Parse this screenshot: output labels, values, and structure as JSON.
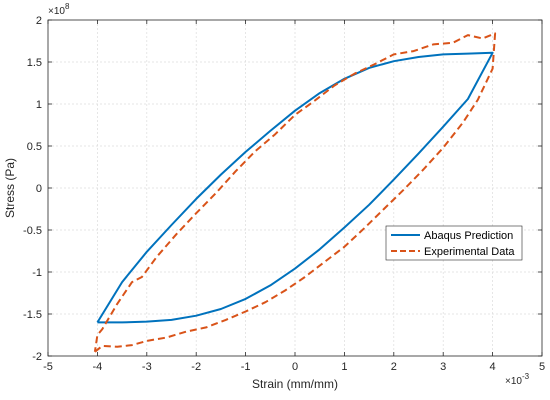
{
  "chart_data": {
    "type": "line",
    "xlabel": "Strain (mm/mm)",
    "ylabel": "Stress (Pa)",
    "x_exponent_label": "×10",
    "x_exponent": "-3",
    "y_exponent_label": "×10",
    "y_exponent": "8",
    "xlim": [
      -5,
      5
    ],
    "ylim": [
      -2,
      2
    ],
    "x_ticks": [
      -5,
      -4,
      -3,
      -2,
      -1,
      0,
      1,
      2,
      3,
      4,
      5
    ],
    "x_tick_labels": [
      "-5",
      "-4",
      "-3",
      "-2",
      "-1",
      "0",
      "1",
      "2",
      "3",
      "4",
      "5"
    ],
    "y_ticks": [
      -2,
      -1.5,
      -1,
      -0.5,
      0,
      0.5,
      1,
      1.5,
      2
    ],
    "y_tick_labels": [
      "-2",
      "-1.5",
      "-1",
      "-0.5",
      "0",
      "0.5",
      "1",
      "1.5",
      "2"
    ],
    "grid": true,
    "legend_position": "right-middle",
    "series": [
      {
        "name": "Abaqus Prediction",
        "color": "#0072bd",
        "style": "solid",
        "points": [
          [
            -4,
            -1.6
          ],
          [
            -3.5,
            -1.6
          ],
          [
            -3,
            -1.59
          ],
          [
            -2.5,
            -1.57
          ],
          [
            -2,
            -1.52
          ],
          [
            -1.5,
            -1.44
          ],
          [
            -1,
            -1.32
          ],
          [
            -0.5,
            -1.16
          ],
          [
            0,
            -0.96
          ],
          [
            0.5,
            -0.73
          ],
          [
            1,
            -0.47
          ],
          [
            1.5,
            -0.2
          ],
          [
            2,
            0.1
          ],
          [
            2.5,
            0.41
          ],
          [
            3,
            0.73
          ],
          [
            3.5,
            1.06
          ],
          [
            4,
            1.61
          ],
          [
            3.5,
            1.6
          ],
          [
            3,
            1.59
          ],
          [
            2.5,
            1.56
          ],
          [
            2,
            1.51
          ],
          [
            1.5,
            1.43
          ],
          [
            1,
            1.3
          ],
          [
            0.5,
            1.13
          ],
          [
            0,
            0.92
          ],
          [
            -0.5,
            0.68
          ],
          [
            -1,
            0.43
          ],
          [
            -1.5,
            0.16
          ],
          [
            -2,
            -0.13
          ],
          [
            -2.5,
            -0.44
          ],
          [
            -3,
            -0.76
          ],
          [
            -3.5,
            -1.12
          ],
          [
            -4,
            -1.6
          ]
        ]
      },
      {
        "name": "Experimental Data",
        "color": "#d95319",
        "style": "dashed",
        "points": [
          [
            -4.05,
            -1.95
          ],
          [
            -3.9,
            -1.88
          ],
          [
            -3.6,
            -1.89
          ],
          [
            -3.3,
            -1.87
          ],
          [
            -3,
            -1.82
          ],
          [
            -2.6,
            -1.78
          ],
          [
            -2.2,
            -1.71
          ],
          [
            -1.8,
            -1.66
          ],
          [
            -1.4,
            -1.57
          ],
          [
            -1,
            -1.47
          ],
          [
            -0.6,
            -1.36
          ],
          [
            -0.2,
            -1.22
          ],
          [
            0.2,
            -1.06
          ],
          [
            0.6,
            -0.88
          ],
          [
            1,
            -0.7
          ],
          [
            1.4,
            -0.48
          ],
          [
            1.8,
            -0.25
          ],
          [
            2.2,
            -0.02
          ],
          [
            2.6,
            0.22
          ],
          [
            3,
            0.48
          ],
          [
            3.4,
            0.78
          ],
          [
            3.7,
            1.05
          ],
          [
            4,
            1.42
          ],
          [
            4.05,
            1.84
          ],
          [
            3.8,
            1.78
          ],
          [
            3.5,
            1.82
          ],
          [
            3.2,
            1.73
          ],
          [
            2.8,
            1.71
          ],
          [
            2.4,
            1.63
          ],
          [
            2,
            1.59
          ],
          [
            1.6,
            1.47
          ],
          [
            1.2,
            1.36
          ],
          [
            0.8,
            1.22
          ],
          [
            0.4,
            1.04
          ],
          [
            0,
            0.87
          ],
          [
            -0.4,
            0.64
          ],
          [
            -0.8,
            0.44
          ],
          [
            -1.2,
            0.2
          ],
          [
            -1.6,
            -0.06
          ],
          [
            -2,
            -0.3
          ],
          [
            -2.4,
            -0.55
          ],
          [
            -2.8,
            -0.82
          ],
          [
            -3.1,
            -1.06
          ],
          [
            -3.3,
            -1.12
          ],
          [
            -3.6,
            -1.38
          ],
          [
            -3.9,
            -1.68
          ],
          [
            -4,
            -1.75
          ],
          [
            -4.05,
            -1.95
          ]
        ]
      }
    ]
  }
}
